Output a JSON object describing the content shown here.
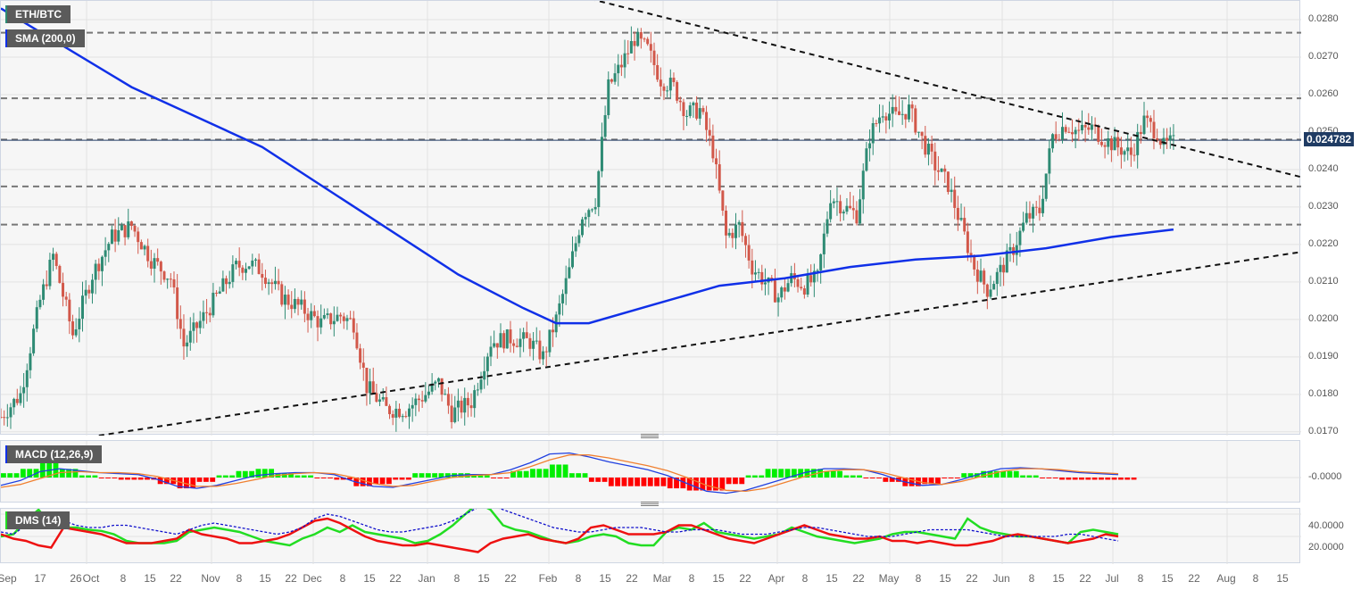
{
  "header": {
    "symbol_label": "ETH/BTC",
    "overlay_label": "SMA (200,0)",
    "macd_label": "MACD (12,26,9)",
    "dms_label": "DMS (14)",
    "last_price": "0.024782"
  },
  "colors": {
    "bull": "#2e8b74",
    "bear": "#d2584a",
    "sma": "#1030e8",
    "macd_line": "#2040e0",
    "signal_line": "#f08030",
    "hist_pos": "#00ee00",
    "hist_neg": "#ff0000",
    "dmi_plus": "#22dd22",
    "dmi_minus": "#ee1111",
    "adx": "#1010cc",
    "price_tag": "#1f3b63"
  },
  "chart_data": [
    {
      "type": "candlestick",
      "title": "ETH/BTC",
      "ylabel": "",
      "ylim": [
        0.0169,
        0.0285
      ],
      "y_ticks": [
        "0.0170",
        "0.0180",
        "0.0190",
        "0.0200",
        "0.0210",
        "0.0220",
        "0.0230",
        "0.0240",
        "0.0250",
        "0.0260",
        "0.0270",
        "0.0280"
      ],
      "x_ticks": [
        "Sep",
        "17",
        "26",
        "Oct",
        "8",
        "15",
        "22",
        "Nov",
        "8",
        "15",
        "22",
        "Dec",
        "8",
        "15",
        "22",
        "Jan",
        "8",
        "15",
        "22",
        "Feb",
        "8",
        "15",
        "22",
        "Mar",
        "8",
        "15",
        "22",
        "Apr",
        "8",
        "15",
        "22",
        "May",
        "8",
        "15",
        "22",
        "Jun",
        "8",
        "15",
        "22",
        "Jul",
        "8",
        "15",
        "22",
        "Aug",
        "8",
        "15"
      ],
      "last_price": 0.024782,
      "close_path": [
        [
          0,
          0.0174
        ],
        [
          6,
          0.018
        ],
        [
          12,
          0.0205
        ],
        [
          16,
          0.0217
        ],
        [
          22,
          0.0196
        ],
        [
          28,
          0.0212
        ],
        [
          34,
          0.0222
        ],
        [
          40,
          0.0225
        ],
        [
          46,
          0.0216
        ],
        [
          52,
          0.0211
        ],
        [
          56,
          0.0193
        ],
        [
          60,
          0.0198
        ],
        [
          66,
          0.0206
        ],
        [
          72,
          0.0214
        ],
        [
          76,
          0.0215
        ],
        [
          80,
          0.0213
        ],
        [
          86,
          0.0206
        ],
        [
          92,
          0.0203
        ],
        [
          98,
          0.0199
        ],
        [
          104,
          0.0201
        ],
        [
          108,
          0.0199
        ],
        [
          112,
          0.0182
        ],
        [
          118,
          0.0176
        ],
        [
          124,
          0.0176
        ],
        [
          130,
          0.018
        ],
        [
          134,
          0.0183
        ],
        [
          138,
          0.0175
        ],
        [
          144,
          0.0178
        ],
        [
          150,
          0.0194
        ],
        [
          156,
          0.0195
        ],
        [
          162,
          0.0194
        ],
        [
          166,
          0.019
        ],
        [
          170,
          0.02
        ],
        [
          174,
          0.0213
        ],
        [
          178,
          0.0228
        ],
        [
          182,
          0.0232
        ],
        [
          186,
          0.0262
        ],
        [
          190,
          0.0268
        ],
        [
          194,
          0.0275
        ],
        [
          198,
          0.0272
        ],
        [
          202,
          0.0264
        ],
        [
          206,
          0.0262
        ],
        [
          210,
          0.0255
        ],
        [
          214,
          0.0256
        ],
        [
          218,
          0.0245
        ],
        [
          222,
          0.0222
        ],
        [
          226,
          0.0225
        ],
        [
          230,
          0.0214
        ],
        [
          234,
          0.021
        ],
        [
          238,
          0.0206
        ],
        [
          242,
          0.0211
        ],
        [
          246,
          0.0209
        ],
        [
          250,
          0.0211
        ],
        [
          254,
          0.0233
        ],
        [
          258,
          0.023
        ],
        [
          262,
          0.0228
        ],
        [
          266,
          0.0249
        ],
        [
          270,
          0.0256
        ],
        [
          274,
          0.0254
        ],
        [
          278,
          0.0256
        ],
        [
          282,
          0.0248
        ],
        [
          286,
          0.0241
        ],
        [
          290,
          0.0236
        ],
        [
          294,
          0.0225
        ],
        [
          298,
          0.0214
        ],
        [
          302,
          0.0208
        ],
        [
          306,
          0.0213
        ],
        [
          310,
          0.0219
        ],
        [
          314,
          0.0227
        ],
        [
          318,
          0.0229
        ],
        [
          322,
          0.0249
        ],
        [
          326,
          0.0252
        ],
        [
          330,
          0.025
        ],
        [
          334,
          0.0251
        ],
        [
          338,
          0.0248
        ],
        [
          342,
          0.0246
        ],
        [
          346,
          0.0244
        ],
        [
          350,
          0.0253
        ],
        [
          354,
          0.025
        ],
        [
          356,
          0.0246
        ],
        [
          358,
          0.0247
        ]
      ],
      "candle_count": 360,
      "series": [
        {
          "name": "SMA (200,0)",
          "points": [
            [
              0,
              0.0283
            ],
            [
              40,
              0.0262
            ],
            [
              80,
              0.0246
            ],
            [
              110,
              0.0229
            ],
            [
              140,
              0.0212
            ],
            [
              160,
              0.0203
            ],
            [
              170,
              0.0199
            ],
            [
              180,
              0.0199
            ],
            [
              200,
              0.0204
            ],
            [
              220,
              0.0209
            ],
            [
              240,
              0.0211
            ],
            [
              260,
              0.0214
            ],
            [
              280,
              0.0216
            ],
            [
              300,
              0.0217
            ],
            [
              320,
              0.0219
            ],
            [
              340,
              0.0222
            ],
            [
              359,
              0.0224
            ]
          ]
        },
        {
          "name": "Resistance trendline",
          "style": "dashed",
          "points": [
            [
              160,
              0.029
            ],
            [
              398,
              0.0238
            ]
          ]
        },
        {
          "name": "Support trendline",
          "style": "dashed",
          "points": [
            [
              30,
              0.0169
            ],
            [
              398,
              0.0218
            ]
          ]
        }
      ],
      "horizontal_levels": [
        0.02765,
        0.0259,
        0.0248,
        0.02355,
        0.02253
      ]
    },
    {
      "type": "line+histogram",
      "title": "MACD (12,26,9)",
      "y_ticks": [
        "-0.0000"
      ],
      "series": [
        {
          "name": "MACD",
          "values": [
            -0.8,
            -0.3,
            0.6,
            0.9,
            0.7,
            0.5,
            0.4,
            0.3,
            -0.2,
            -0.9,
            -1.1,
            -0.8,
            -0.3,
            0.2,
            0.4,
            0.5,
            0.5,
            0.3,
            -0.4,
            -0.9,
            -1.0,
            -0.6,
            -0.2,
            0.2,
            0.3,
            0.3,
            0.8,
            1.5,
            2.4,
            2.5,
            2.1,
            1.6,
            1.2,
            0.8,
            0.2,
            -0.6,
            -1.4,
            -1.6,
            -1.3,
            -0.7,
            -0.1,
            0.5,
            0.9,
            0.9,
            0.8,
            0.3,
            -0.4,
            -0.8,
            -0.7,
            -0.2,
            0.4,
            0.9,
            1.0,
            0.9,
            0.7,
            0.5,
            0.4,
            0.3
          ]
        },
        {
          "name": "Signal",
          "values": [
            -1.0,
            -0.7,
            -0.1,
            0.5,
            0.6,
            0.5,
            0.5,
            0.4,
            0.1,
            -0.4,
            -0.9,
            -0.9,
            -0.6,
            -0.2,
            0.2,
            0.4,
            0.5,
            0.4,
            0.0,
            -0.6,
            -0.9,
            -0.8,
            -0.4,
            0.0,
            0.2,
            0.3,
            0.5,
            1.1,
            1.8,
            2.3,
            2.3,
            2.0,
            1.6,
            1.2,
            0.7,
            0.0,
            -0.8,
            -1.3,
            -1.4,
            -1.1,
            -0.5,
            0.1,
            0.6,
            0.8,
            0.8,
            0.5,
            0.0,
            -0.5,
            -0.7,
            -0.4,
            0.1,
            0.6,
            0.9,
            0.9,
            0.8,
            0.6,
            0.5,
            0.4
          ]
        }
      ]
    },
    {
      "type": "line",
      "title": "DMS (14)",
      "y_ticks": [
        "40.0000",
        "20.0000"
      ],
      "series": [
        {
          "name": "+DI",
          "values": [
            20,
            22,
            34,
            44,
            30,
            28,
            28,
            26,
            25,
            22,
            16,
            14,
            14,
            14,
            16,
            24,
            26,
            28,
            26,
            24,
            20,
            16,
            14,
            12,
            18,
            22,
            28,
            24,
            30,
            24,
            22,
            20,
            18,
            14,
            16,
            22,
            30,
            40,
            50,
            44,
            30,
            26,
            24,
            20,
            16,
            14,
            16,
            20,
            22,
            20,
            14,
            12,
            12,
            24,
            28,
            26,
            32,
            24,
            22,
            20,
            18,
            20,
            22,
            28,
            24,
            20,
            18,
            16,
            14,
            16,
            18,
            22,
            24,
            24,
            22,
            20,
            18,
            36,
            28,
            24,
            22,
            20,
            20,
            18,
            16,
            14,
            24,
            26,
            24,
            22
          ]
        },
        {
          "name": "-DI",
          "values": [
            22,
            18,
            16,
            12,
            10,
            28,
            26,
            24,
            22,
            18,
            14,
            14,
            14,
            16,
            18,
            26,
            22,
            20,
            18,
            14,
            14,
            16,
            18,
            22,
            28,
            34,
            36,
            32,
            26,
            20,
            16,
            14,
            12,
            12,
            14,
            12,
            10,
            8,
            6,
            14,
            18,
            20,
            22,
            18,
            16,
            14,
            18,
            28,
            30,
            26,
            22,
            22,
            22,
            24,
            30,
            30,
            26,
            22,
            18,
            16,
            14,
            18,
            22,
            26,
            30,
            26,
            22,
            20,
            18,
            18,
            20,
            16,
            16,
            14,
            16,
            14,
            12,
            12,
            14,
            16,
            20,
            22,
            20,
            18,
            16,
            14,
            16,
            18,
            22,
            20
          ]
        },
        {
          "name": "ADX",
          "values": [
            24,
            22,
            30,
            34,
            36,
            34,
            30,
            28,
            28,
            30,
            30,
            28,
            26,
            24,
            22,
            26,
            30,
            32,
            30,
            28,
            26,
            24,
            22,
            24,
            28,
            36,
            40,
            38,
            34,
            30,
            26,
            24,
            24,
            26,
            28,
            30,
            34,
            40,
            46,
            48,
            44,
            40,
            36,
            32,
            28,
            26,
            24,
            24,
            26,
            28,
            28,
            28,
            26,
            24,
            24,
            26,
            26,
            26,
            24,
            22,
            22,
            22,
            24,
            26,
            28,
            28,
            26,
            24,
            22,
            20,
            20,
            20,
            22,
            24,
            26,
            26,
            26,
            26,
            24,
            22,
            20,
            20,
            20,
            20,
            20,
            22,
            22,
            20,
            18,
            16
          ]
        }
      ]
    }
  ]
}
